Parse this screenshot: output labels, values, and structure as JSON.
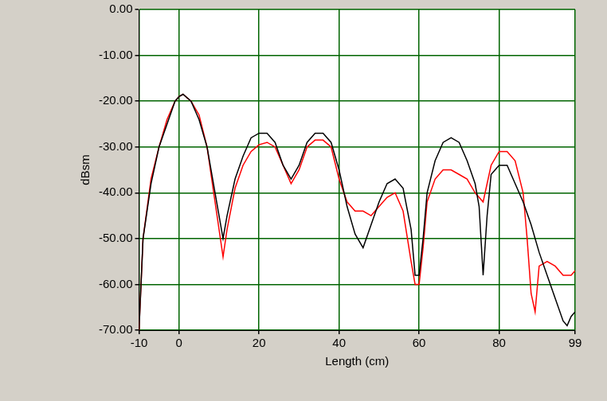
{
  "chart_data": {
    "type": "line",
    "xlabel": "Length (cm)",
    "ylabel": "dBsm",
    "xlim": [
      -10,
      99
    ],
    "xticks": [
      -10,
      0,
      20,
      40,
      60,
      80,
      99
    ],
    "ylim": [
      -70,
      0
    ],
    "yticks": [
      {
        "value": 0,
        "label": "0.00"
      },
      {
        "value": -10,
        "label": "-10.00"
      },
      {
        "value": -20,
        "label": "-20.00"
      },
      {
        "value": -30,
        "label": "-30.00"
      },
      {
        "value": -40,
        "label": "-40.00"
      },
      {
        "value": -50,
        "label": "-50.00"
      },
      {
        "value": -60,
        "label": "-60.00"
      },
      {
        "value": -70,
        "label": "-70.00"
      }
    ],
    "grid": true,
    "series": [
      {
        "color": "#000000",
        "x": [
          -10,
          -9,
          -7,
          -5,
          -3,
          -1,
          0,
          1,
          3,
          5,
          7,
          9,
          11,
          12,
          14,
          16,
          18,
          20,
          22,
          24,
          26,
          28,
          30,
          32,
          34,
          36,
          38,
          40,
          42,
          44,
          46,
          48,
          50,
          52,
          54,
          56,
          58,
          59,
          60,
          61,
          62,
          64,
          66,
          68,
          70,
          72,
          74,
          75,
          76,
          77,
          78,
          80,
          82,
          84,
          86,
          88,
          90,
          92,
          94,
          96,
          97,
          98,
          99
        ],
        "values": [
          -70,
          -50,
          -38,
          -30,
          -25,
          -20,
          -19,
          -18.5,
          -20,
          -24,
          -30,
          -40,
          -50,
          -45,
          -37,
          -32,
          -28,
          -27,
          -27,
          -29,
          -34,
          -37,
          -34,
          -29,
          -27,
          -27,
          -29,
          -35,
          -43,
          -49,
          -52,
          -47,
          -42,
          -38,
          -37,
          -39,
          -48,
          -58,
          -58,
          -50,
          -40,
          -33,
          -29,
          -28,
          -29,
          -33,
          -38,
          -43,
          -58,
          -45,
          -36,
          -34,
          -34,
          -38,
          -42,
          -47,
          -53,
          -58,
          -63,
          -68,
          -69,
          -67,
          -66
        ]
      },
      {
        "color": "#ff0000",
        "x": [
          -10,
          -9,
          -7,
          -5,
          -3,
          -1,
          0,
          1,
          3,
          5,
          7,
          9,
          11,
          12,
          14,
          16,
          18,
          20,
          22,
          24,
          26,
          28,
          30,
          32,
          34,
          36,
          38,
          40,
          42,
          44,
          46,
          48,
          50,
          52,
          54,
          56,
          58,
          59,
          60,
          61,
          62,
          64,
          66,
          68,
          70,
          72,
          74,
          76,
          77,
          78,
          80,
          82,
          84,
          86,
          87,
          88,
          89,
          90,
          92,
          94,
          96,
          98,
          99
        ],
        "values": [
          -70,
          -50,
          -37,
          -30,
          -24,
          -20,
          -19,
          -18.5,
          -20,
          -23,
          -30,
          -42,
          -54,
          -48,
          -39,
          -34,
          -31,
          -29.5,
          -29,
          -30,
          -34,
          -38,
          -35,
          -30,
          -28.5,
          -28.5,
          -30,
          -37,
          -42,
          -44,
          -44,
          -45,
          -43,
          -41,
          -40,
          -44,
          -55,
          -60,
          -60,
          -52,
          -42,
          -37,
          -35,
          -35,
          -36,
          -37,
          -40,
          -42,
          -38,
          -34,
          -31,
          -31,
          -33,
          -40,
          -50,
          -62,
          -66,
          -56,
          -55,
          -56,
          -58,
          -58,
          -57
        ]
      }
    ]
  }
}
